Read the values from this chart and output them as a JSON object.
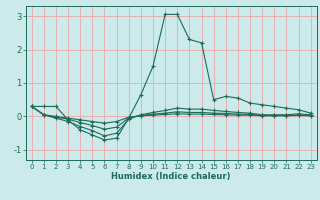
{
  "xlabel": "Humidex (Indice chaleur)",
  "ylabel": "",
  "bg_color": "#cceaea",
  "line_color": "#1a6b5a",
  "grid_color": "#e8b0b0",
  "xlim": [
    -0.5,
    23.5
  ],
  "ylim": [
    -1.3,
    3.3
  ],
  "xticks": [
    0,
    1,
    2,
    3,
    4,
    5,
    6,
    7,
    8,
    9,
    10,
    11,
    12,
    13,
    14,
    15,
    16,
    17,
    18,
    19,
    20,
    21,
    22,
    23
  ],
  "yticks": [
    -1,
    0,
    1,
    2,
    3
  ],
  "series": [
    [
      0.3,
      0.3,
      0.3,
      -0.1,
      -0.4,
      -0.55,
      -0.7,
      -0.65,
      -0.05,
      0.65,
      1.5,
      3.05,
      3.05,
      2.3,
      2.2,
      0.5,
      0.6,
      0.55,
      0.4,
      0.35,
      0.3,
      0.25,
      0.2,
      0.1
    ],
    [
      0.3,
      0.05,
      -0.05,
      -0.15,
      -0.3,
      -0.42,
      -0.58,
      -0.5,
      -0.08,
      0.05,
      0.12,
      0.18,
      0.25,
      0.22,
      0.22,
      0.18,
      0.15,
      0.12,
      0.1,
      0.05,
      0.05,
      0.05,
      0.08,
      0.05
    ],
    [
      0.3,
      0.05,
      -0.02,
      -0.08,
      -0.18,
      -0.27,
      -0.38,
      -0.32,
      -0.04,
      0.03,
      0.07,
      0.1,
      0.14,
      0.12,
      0.12,
      0.1,
      0.09,
      0.07,
      0.06,
      0.03,
      0.03,
      0.03,
      0.04,
      0.03
    ],
    [
      0.3,
      0.05,
      0.0,
      -0.05,
      -0.1,
      -0.15,
      -0.2,
      -0.15,
      -0.02,
      0.02,
      0.04,
      0.06,
      0.08,
      0.07,
      0.07,
      0.06,
      0.05,
      0.04,
      0.04,
      0.02,
      0.02,
      0.02,
      0.03,
      0.02
    ]
  ]
}
